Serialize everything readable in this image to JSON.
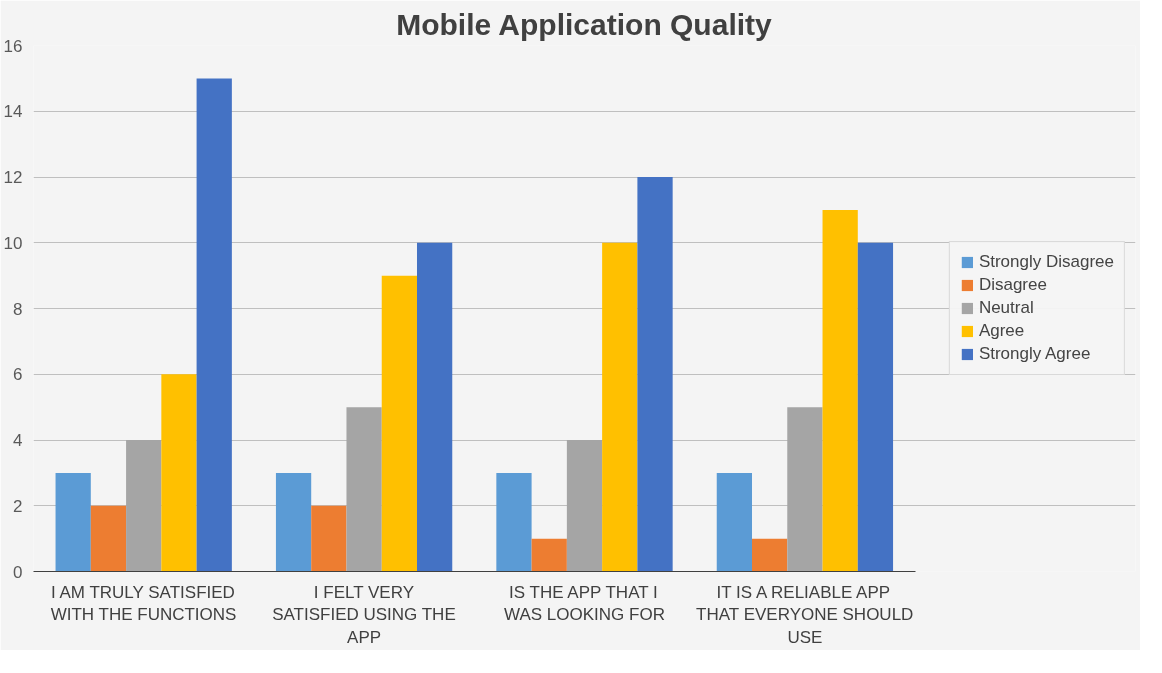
{
  "chart_data": {
    "type": "bar",
    "title": "Mobile Application Quality",
    "categories": [
      "I AM TRULY SATISFIED WITH THE FUNCTIONS",
      "I FELT VERY SATISFIED USING THE APP",
      "IS THE APP THAT I WAS LOOKING FOR",
      "IT IS A RELIABLE APP THAT EVERYONE SHOULD USE"
    ],
    "series": [
      {
        "name": "Strongly Disagree",
        "color": "#5b9bd5",
        "values": [
          3,
          3,
          3,
          3
        ]
      },
      {
        "name": "Disagree",
        "color": "#ed7d31",
        "values": [
          2,
          2,
          1,
          1
        ]
      },
      {
        "name": "Neutral",
        "color": "#a5a5a5",
        "values": [
          4,
          5,
          4,
          5
        ]
      },
      {
        "name": "Agree",
        "color": "#ffc000",
        "values": [
          6,
          9,
          10,
          11
        ]
      },
      {
        "name": "Strongly Agree",
        "color": "#4472c4",
        "values": [
          15,
          10,
          12,
          10
        ]
      }
    ],
    "ylim": [
      0,
      16
    ],
    "yticks": [
      0,
      2,
      4,
      6,
      8,
      10,
      12,
      14,
      16
    ],
    "grid": "y",
    "legend": "right"
  }
}
